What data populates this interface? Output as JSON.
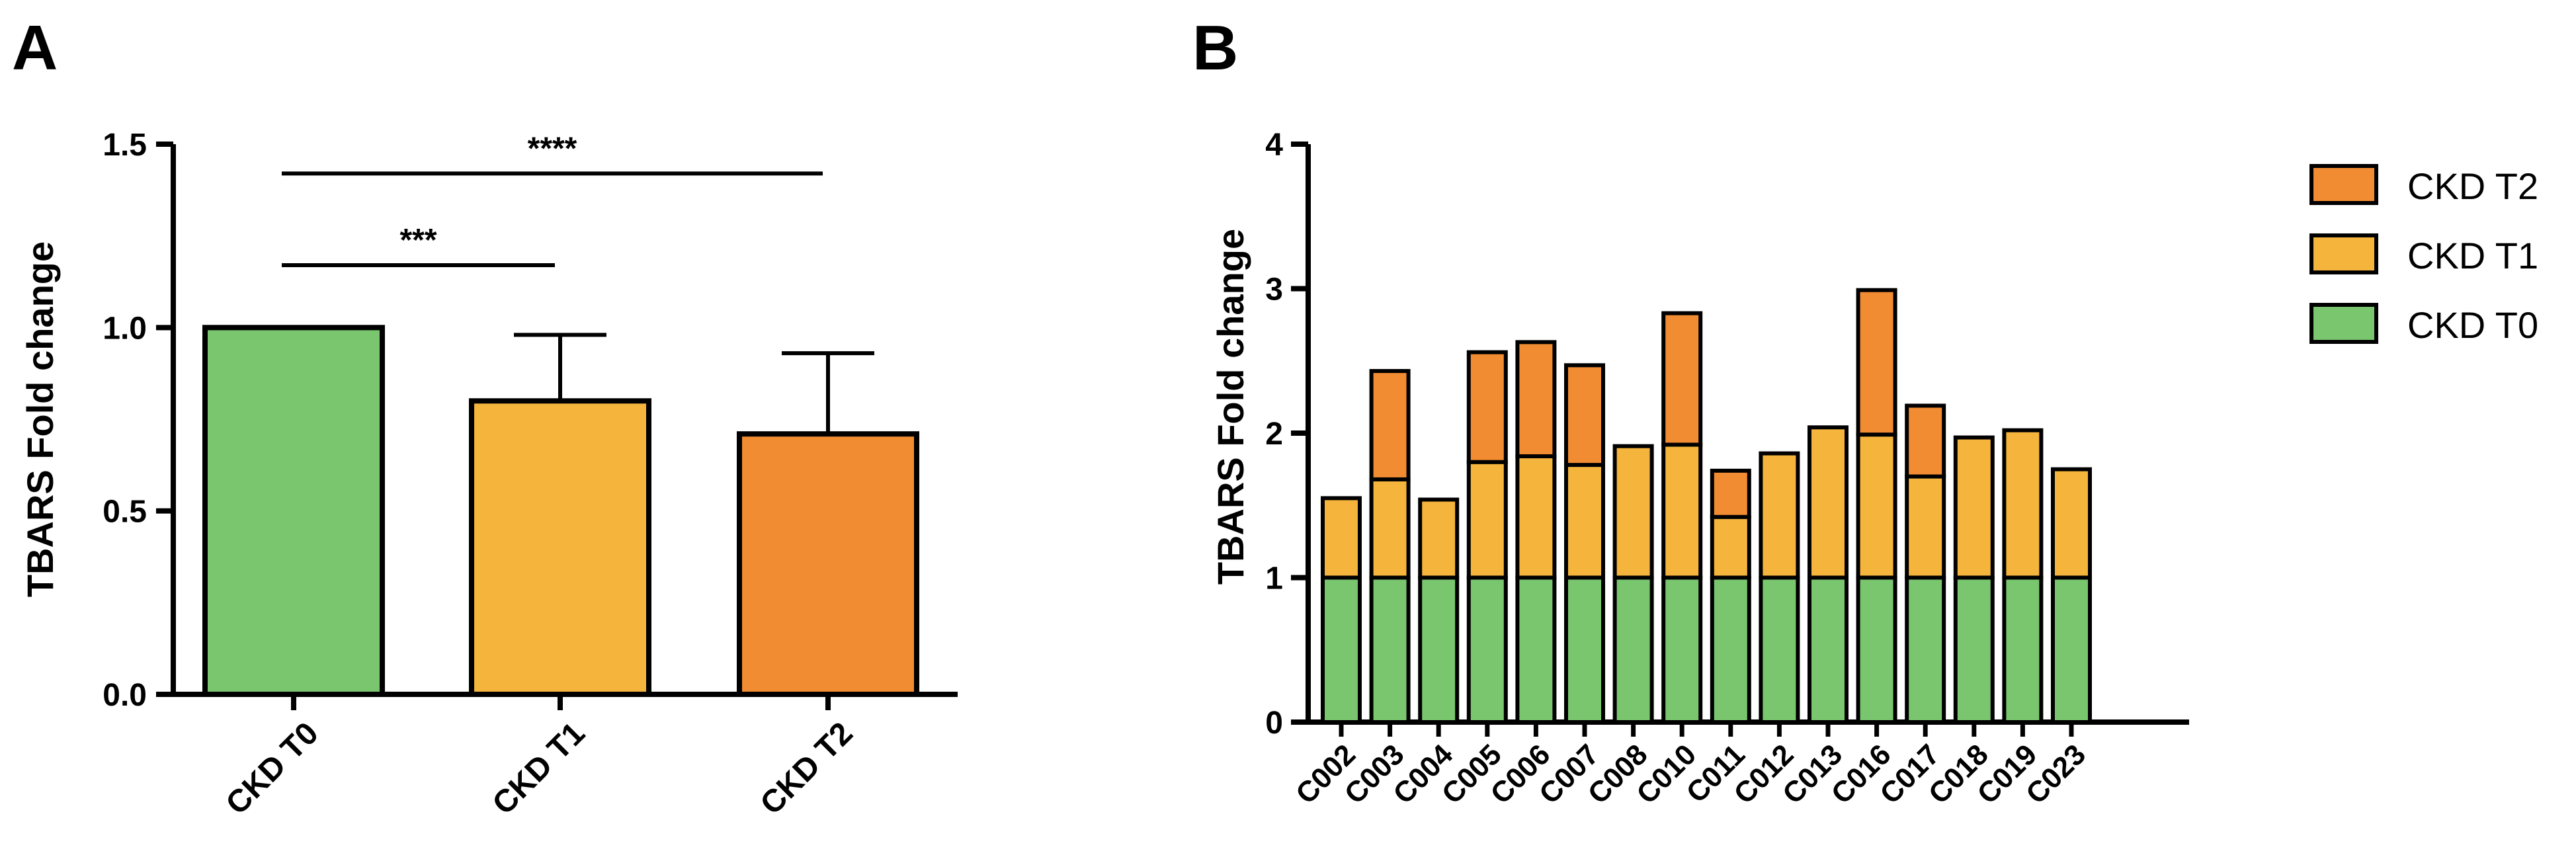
{
  "chart_data": [
    {
      "panel": "A",
      "type": "bar",
      "title": "",
      "xlabel": "",
      "ylabel": "TBARS Fold change",
      "ylim": [
        0,
        1.5
      ],
      "yticks": [
        0.0,
        0.5,
        1.0,
        1.5
      ],
      "ytick_labels": [
        "0.0",
        "0.5",
        "1.0",
        "1.5"
      ],
      "grid": false,
      "categories": [
        "CKD T0",
        "CKD T1",
        "CKD T2"
      ],
      "values": [
        1.0,
        0.8,
        0.71
      ],
      "errors": [
        0.0,
        0.18,
        0.22
      ],
      "colors": [
        "#7ac66f",
        "#f5b53c",
        "#f28c33"
      ],
      "significance": [
        {
          "from": "CKD T0",
          "to": "CKD T1",
          "label": "***",
          "y": 1.17
        },
        {
          "from": "CKD T0",
          "to": "CKD T2",
          "label": "****",
          "y": 1.42
        }
      ]
    },
    {
      "panel": "B",
      "type": "bar",
      "stacked": true,
      "title": "",
      "xlabel": "",
      "ylabel": "TBARS Fold change",
      "ylim": [
        0,
        4
      ],
      "yticks": [
        0,
        1,
        2,
        3,
        4
      ],
      "ytick_labels": [
        "0",
        "1",
        "2",
        "3",
        "4"
      ],
      "grid": false,
      "legend_position": "right",
      "categories": [
        "C002",
        "C003",
        "C004",
        "C005",
        "C006",
        "C007",
        "C008",
        "C010",
        "C011",
        "C012",
        "C013",
        "C016",
        "C017",
        "C018",
        "C019",
        "C023"
      ],
      "series": [
        {
          "name": "CKD T0",
          "color": "#7ac66f",
          "values": [
            1,
            1,
            1,
            1,
            1,
            1,
            1,
            1,
            1,
            1,
            1,
            1,
            1,
            1,
            1,
            1
          ]
        },
        {
          "name": "CKD T1",
          "color": "#f5b53c",
          "values": [
            0.55,
            0.68,
            0.54,
            0.8,
            0.84,
            0.78,
            0.91,
            0.92,
            0.42,
            0.86,
            1.04,
            0.99,
            0.7,
            0.97,
            1.02,
            0.75
          ]
        },
        {
          "name": "CKD T2",
          "color": "#f28c33",
          "values": [
            0,
            0.75,
            0,
            0.76,
            0.79,
            0.69,
            0,
            0.91,
            0.32,
            0,
            0,
            1.0,
            0.49,
            0,
            0,
            0
          ]
        }
      ],
      "legend_order": [
        "CKD T2",
        "CKD T1",
        "CKD T0"
      ]
    }
  ]
}
